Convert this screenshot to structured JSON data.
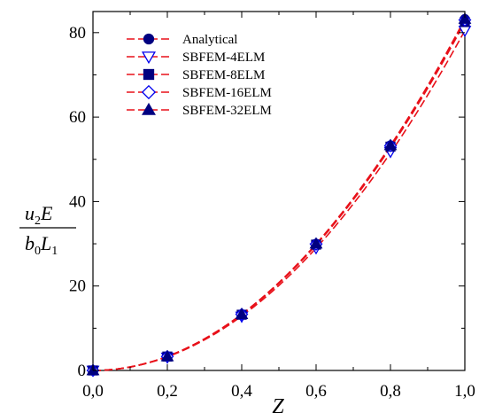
{
  "chart_data": {
    "type": "line",
    "xlabel": "Z",
    "ylabel": {
      "numerator": {
        "var": "u",
        "sub": "2",
        "rest": "E"
      },
      "denominator": {
        "var": "b",
        "sub": "0",
        "rest": "L",
        "sub2": "1"
      }
    },
    "xlim": [
      0,
      1
    ],
    "ylim": [
      0,
      85
    ],
    "x_ticks": [
      "0,0",
      "0,2",
      "0,4",
      "0,6",
      "0,8",
      "1,0"
    ],
    "x_tick_values": [
      0,
      0.2,
      0.4,
      0.6,
      0.8,
      1.0
    ],
    "y_ticks": [
      "0",
      "20",
      "40",
      "60",
      "80"
    ],
    "y_tick_values": [
      0,
      20,
      40,
      60,
      80
    ],
    "grid": false,
    "legend_position": "top-left",
    "series": [
      {
        "name": "Analytical",
        "marker": "circle",
        "filled": true,
        "color": "#000080",
        "line_color": "#e8111a",
        "x": [
          0,
          0.2,
          0.4,
          0.6,
          0.8,
          1.0
        ],
        "y": [
          0,
          3.3,
          13.3,
          30.0,
          53.3,
          83.2
        ]
      },
      {
        "name": "SBFEM-4ELM",
        "marker": "triangle-down",
        "filled": false,
        "color": "#0000ee",
        "line_color": "#e8111a",
        "x": [
          0,
          0.2,
          0.4,
          0.6,
          0.8,
          1.0
        ],
        "y": [
          0,
          3.1,
          12.8,
          29.0,
          51.8,
          80.5
        ]
      },
      {
        "name": "SBFEM-8ELM",
        "marker": "square",
        "filled": true,
        "color": "#000080",
        "line_color": "#e8111a",
        "x": [
          0,
          0.2,
          0.4,
          0.6,
          0.8,
          1.0
        ],
        "y": [
          0,
          3.3,
          13.2,
          29.8,
          53.0,
          82.5
        ]
      },
      {
        "name": "SBFEM-16ELM",
        "marker": "diamond",
        "filled": false,
        "color": "#0000ee",
        "line_color": "#e8111a",
        "x": [
          0,
          0.2,
          0.4,
          0.6,
          0.8,
          1.0
        ],
        "y": [
          0,
          3.3,
          13.3,
          29.9,
          53.2,
          83.0
        ]
      },
      {
        "name": "SBFEM-32ELM",
        "marker": "triangle-up",
        "filled": true,
        "color": "#000080",
        "line_color": "#e8111a",
        "x": [
          0,
          0.2,
          0.4,
          0.6,
          0.8,
          1.0
        ],
        "y": [
          0,
          3.3,
          13.3,
          30.0,
          53.3,
          83.2
        ]
      }
    ]
  }
}
